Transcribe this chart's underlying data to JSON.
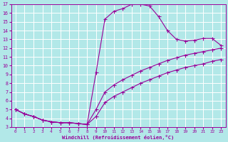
{
  "xlabel": "Windchill (Refroidissement éolien,°C)",
  "bg_color": "#b2e8e8",
  "grid_color": "#ffffff",
  "line_color": "#990099",
  "xlim": [
    -0.5,
    23.5
  ],
  "ylim": [
    3,
    17
  ],
  "xticks": [
    0,
    1,
    2,
    3,
    4,
    5,
    6,
    7,
    8,
    9,
    10,
    11,
    12,
    13,
    14,
    15,
    16,
    17,
    18,
    19,
    20,
    21,
    22,
    23
  ],
  "yticks": [
    3,
    4,
    5,
    6,
    7,
    8,
    9,
    10,
    11,
    12,
    13,
    14,
    15,
    16,
    17
  ],
  "curve1_x": [
    0,
    1,
    2,
    3,
    4,
    5,
    6,
    7,
    8,
    9,
    10,
    11,
    12,
    13,
    14,
    15,
    16,
    17,
    18,
    19,
    20,
    21,
    22,
    23
  ],
  "curve1_y": [
    5.0,
    4.5,
    4.2,
    3.8,
    3.6,
    3.5,
    3.5,
    3.4,
    3.3,
    9.2,
    15.3,
    16.2,
    16.5,
    17.0,
    17.0,
    16.8,
    15.6,
    14.0,
    13.0,
    12.8,
    12.9,
    13.1,
    13.1,
    12.3
  ],
  "curve2_x": [
    0,
    1,
    2,
    3,
    4,
    5,
    6,
    7,
    8,
    9,
    10,
    11,
    12,
    13,
    14,
    15,
    16,
    17,
    18,
    19,
    20,
    21,
    22,
    23
  ],
  "curve2_y": [
    5.0,
    4.5,
    4.2,
    3.8,
    3.6,
    3.5,
    3.5,
    3.4,
    3.3,
    5.0,
    7.0,
    7.8,
    8.4,
    8.9,
    9.4,
    9.8,
    10.2,
    10.6,
    10.9,
    11.2,
    11.4,
    11.6,
    11.8,
    12.0
  ],
  "curve3_x": [
    0,
    1,
    2,
    3,
    4,
    5,
    6,
    7,
    8,
    9,
    10,
    11,
    12,
    13,
    14,
    15,
    16,
    17,
    18,
    19,
    20,
    21,
    22,
    23
  ],
  "curve3_y": [
    5.0,
    4.5,
    4.2,
    3.8,
    3.6,
    3.5,
    3.5,
    3.4,
    3.3,
    4.2,
    5.8,
    6.5,
    7.0,
    7.5,
    8.0,
    8.4,
    8.8,
    9.2,
    9.5,
    9.8,
    10.0,
    10.2,
    10.5,
    10.7
  ]
}
